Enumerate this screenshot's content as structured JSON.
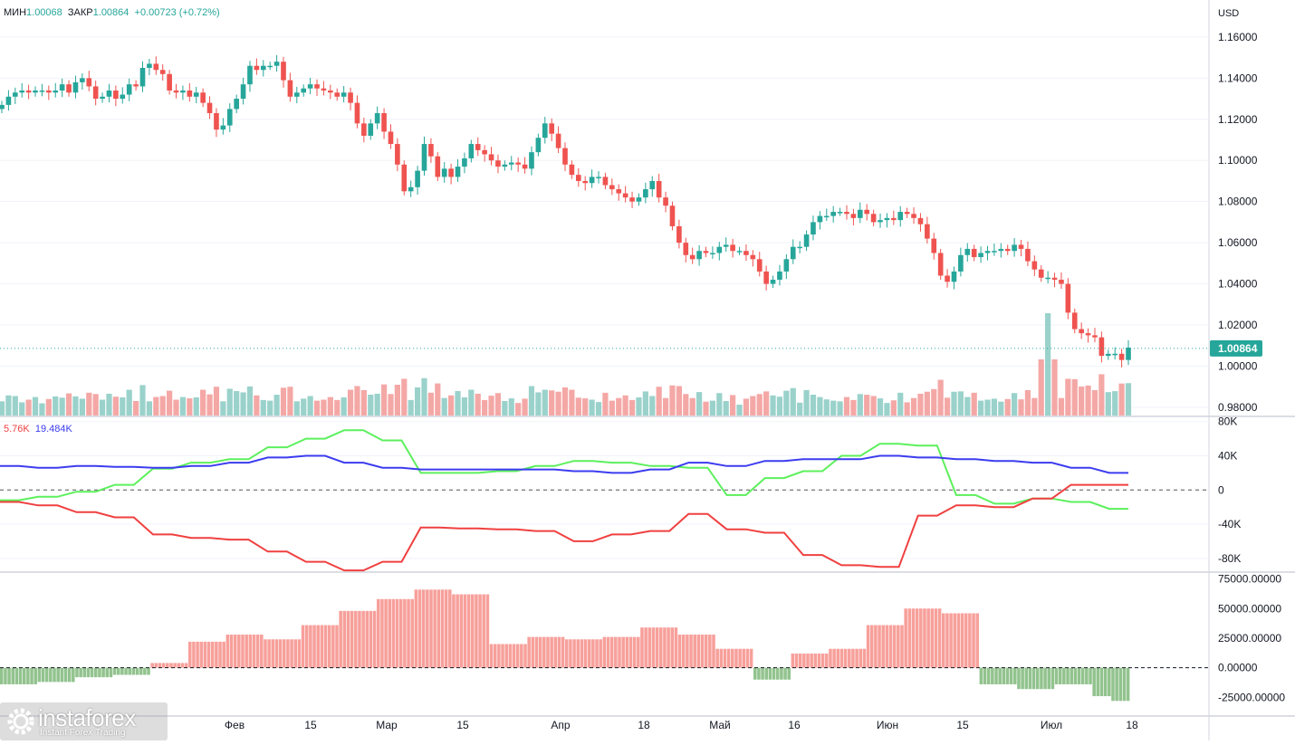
{
  "header": {
    "low_label": "МИН",
    "low_value": "1.00068",
    "close_label": "ЗАКР",
    "close_value": "1.00864",
    "change": "+0.00723 (+0.72%)"
  },
  "currency": "USD",
  "last_price_label": "1.00864",
  "cot_legend": {
    "red": "5.76K",
    "blue": "19.484K"
  },
  "logo": {
    "brand": "instaforex",
    "tagline": "Instant Forex Trading"
  },
  "colors": {
    "up": "#26a69a",
    "down": "#ef5350",
    "vol_up": "#9ad2cb",
    "vol_down": "#f4a8a6",
    "green_line": "#5cf05c",
    "blue_line": "#3c3cf0",
    "red_line": "#f04040",
    "hist_pos": "#f7a09b",
    "hist_neg": "#92c38e",
    "grid": "#f0f3fa",
    "axis_text": "#131722"
  },
  "chart_data": [
    {
      "type": "candlestick",
      "title": "Price",
      "ylabel": "USD",
      "ylim": [
        0.976,
        1.178
      ],
      "yticks": [
        "1.16000",
        "1.14000",
        "1.12000",
        "1.10000",
        "1.08000",
        "1.06000",
        "1.04000",
        "1.02000",
        "1.00000",
        "0.98000"
      ],
      "ytick_values": [
        1.16,
        1.14,
        1.12,
        1.1,
        1.08,
        1.06,
        1.04,
        1.02,
        1.0,
        0.98
      ],
      "xticks": [
        "Фев",
        "15",
        "Мар",
        "15",
        "Апр",
        "18",
        "Май",
        "16",
        "Июн",
        "15",
        "Июл",
        "18"
      ],
      "last": 1.00864,
      "closes": [
        1.127,
        1.131,
        1.133,
        1.134,
        1.133,
        1.134,
        1.134,
        1.133,
        1.134,
        1.137,
        1.133,
        1.138,
        1.14,
        1.136,
        1.13,
        1.131,
        1.134,
        1.13,
        1.132,
        1.137,
        1.136,
        1.145,
        1.147,
        1.144,
        1.142,
        1.134,
        1.133,
        1.134,
        1.131,
        1.133,
        1.128,
        1.123,
        1.115,
        1.117,
        1.125,
        1.13,
        1.137,
        1.146,
        1.144,
        1.146,
        1.146,
        1.148,
        1.139,
        1.131,
        1.133,
        1.135,
        1.137,
        1.135,
        1.134,
        1.133,
        1.131,
        1.133,
        1.128,
        1.118,
        1.112,
        1.118,
        1.123,
        1.114,
        1.108,
        1.098,
        1.085,
        1.087,
        1.095,
        1.108,
        1.102,
        1.092,
        1.096,
        1.092,
        1.097,
        1.101,
        1.108,
        1.105,
        1.103,
        1.1,
        1.097,
        1.098,
        1.099,
        1.098,
        1.096,
        1.104,
        1.111,
        1.118,
        1.113,
        1.106,
        1.098,
        1.093,
        1.09,
        1.089,
        1.092,
        1.092,
        1.088,
        1.086,
        1.084,
        1.082,
        1.08,
        1.082,
        1.086,
        1.09,
        1.082,
        1.078,
        1.068,
        1.06,
        1.054,
        1.052,
        1.056,
        1.055,
        1.055,
        1.058,
        1.059,
        1.056,
        1.056,
        1.054,
        1.052,
        1.046,
        1.04,
        1.042,
        1.046,
        1.052,
        1.058,
        1.058,
        1.064,
        1.07,
        1.073,
        1.073,
        1.075,
        1.075,
        1.074,
        1.072,
        1.076,
        1.074,
        1.07,
        1.071,
        1.072,
        1.071,
        1.075,
        1.074,
        1.072,
        1.069,
        1.062,
        1.055,
        1.044,
        1.041,
        1.046,
        1.054,
        1.057,
        1.053,
        1.055,
        1.056,
        1.056,
        1.057,
        1.056,
        1.059,
        1.057,
        1.051,
        1.047,
        1.043,
        1.043,
        1.042,
        1.04,
        1.026,
        1.018,
        1.016,
        1.015,
        1.014,
        1.005,
        1.006,
        1.006,
        1.003,
        1.009
      ],
      "volume_bars_count": 168
    },
    {
      "type": "line",
      "title": "COT positions",
      "ylim": [
        -95000,
        85000
      ],
      "yticks": [
        "80K",
        "40K",
        "0",
        "-40K",
        "-80K"
      ],
      "ytick_values": [
        80000,
        40000,
        0,
        -40000,
        -80000
      ],
      "series": [
        {
          "name": "green",
          "weekly": [
            -12000,
            -12000,
            -8000,
            -8000,
            -2000,
            -2000,
            6000,
            6000,
            25000,
            25000,
            32000,
            32000,
            36000,
            36000,
            50000,
            50000,
            60000,
            60000,
            70000,
            70000,
            58000,
            58000,
            20000,
            20000,
            20000,
            20000,
            22000,
            22000,
            28000,
            28000,
            34000,
            34000,
            32000,
            32000,
            28000,
            28000,
            26000,
            26000,
            -6000,
            -6000,
            14000,
            14000,
            22000,
            22000,
            40000,
            40000,
            54000,
            54000,
            52000,
            52000,
            -6000,
            -6000,
            -16000,
            -16000,
            -10000,
            -10000,
            -14000,
            -14000,
            -22000,
            -22000
          ]
        },
        {
          "name": "blue",
          "weekly": [
            28000,
            28000,
            26000,
            26000,
            28000,
            28000,
            27000,
            27000,
            26000,
            26000,
            28000,
            28000,
            32000,
            32000,
            38000,
            38000,
            40000,
            40000,
            32000,
            32000,
            26000,
            26000,
            24000,
            24000,
            24000,
            24000,
            24000,
            24000,
            24000,
            24000,
            22000,
            22000,
            20000,
            20000,
            24000,
            24000,
            32000,
            32000,
            28000,
            28000,
            34000,
            34000,
            36000,
            36000,
            36000,
            36000,
            40000,
            40000,
            38000,
            38000,
            36000,
            36000,
            34000,
            34000,
            32000,
            32000,
            26000,
            26000,
            20000,
            20000
          ]
        },
        {
          "name": "red",
          "weekly": [
            -14000,
            -14000,
            -18000,
            -18000,
            -26000,
            -26000,
            -32000,
            -32000,
            -52000,
            -52000,
            -56000,
            -56000,
            -58000,
            -58000,
            -72000,
            -72000,
            -84000,
            -84000,
            -94000,
            -94000,
            -84000,
            -84000,
            -44000,
            -44000,
            -45000,
            -45000,
            -46000,
            -46000,
            -48000,
            -48000,
            -60000,
            -60000,
            -52000,
            -52000,
            -48000,
            -48000,
            -28000,
            -28000,
            -46000,
            -46000,
            -50000,
            -50000,
            -76000,
            -76000,
            -88000,
            -88000,
            -90000,
            -90000,
            -30000,
            -30000,
            -18000,
            -18000,
            -20000,
            -20000,
            -10000,
            -10000,
            6000,
            6000,
            6000,
            6000
          ]
        }
      ]
    },
    {
      "type": "histogram",
      "title": "Net position",
      "ylim": [
        -40000,
        80000
      ],
      "yticks": [
        "75000.00000",
        "50000.00000",
        "25000.00000",
        "0.00000",
        "-25000.00000"
      ],
      "ytick_values": [
        75000,
        50000,
        25000,
        0,
        -25000
      ],
      "weekly": [
        -14000,
        -14000,
        -12000,
        -12000,
        -8000,
        -8000,
        -6000,
        -6000,
        4000,
        4000,
        22000,
        22000,
        28000,
        28000,
        24000,
        24000,
        36000,
        36000,
        48000,
        48000,
        58000,
        58000,
        66000,
        66000,
        62000,
        62000,
        20000,
        20000,
        26000,
        26000,
        24000,
        24000,
        26000,
        26000,
        34000,
        34000,
        28000,
        28000,
        16000,
        16000,
        -10000,
        -10000,
        12000,
        12000,
        16000,
        16000,
        36000,
        36000,
        50000,
        50000,
        46000,
        46000,
        -14000,
        -14000,
        -18000,
        -18000,
        -14000,
        -14000,
        -24000,
        -28000
      ]
    }
  ]
}
